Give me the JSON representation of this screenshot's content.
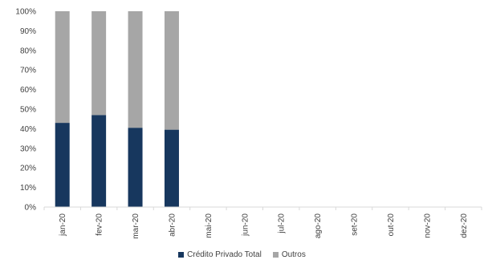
{
  "chart_data": {
    "type": "bar",
    "stacked": true,
    "percent": true,
    "categories": [
      "jan-20",
      "fev-20",
      "mar-20",
      "abr-20",
      "mai-20",
      "jun-20",
      "jul-20",
      "ago-20",
      "set-20",
      "out-20",
      "nov-20",
      "dez-20"
    ],
    "series": [
      {
        "name": "Crédito Privado Total",
        "color": "#17375e",
        "values": [
          43,
          47,
          40.5,
          39.5,
          null,
          null,
          null,
          null,
          null,
          null,
          null,
          null
        ]
      },
      {
        "name": "Outros",
        "color": "#a6a6a6",
        "values": [
          57,
          53,
          59.5,
          60.5,
          null,
          null,
          null,
          null,
          null,
          null,
          null,
          null
        ]
      }
    ],
    "ylim": [
      0,
      100
    ],
    "yticks": [
      "0%",
      "10%",
      "20%",
      "30%",
      "40%",
      "50%",
      "60%",
      "70%",
      "80%",
      "90%",
      "100%"
    ],
    "legend_position": "bottom",
    "grid": false
  }
}
